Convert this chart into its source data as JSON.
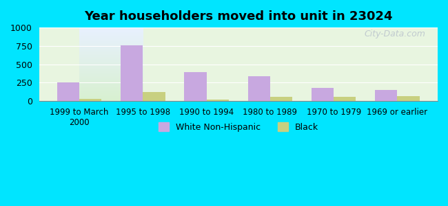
{
  "title": "Year householders moved into unit in 23024",
  "categories": [
    "1999 to March\n2000",
    "1995 to 1998",
    "1990 to 1994",
    "1980 to 1989",
    "1970 to 1979",
    "1969 or earlier"
  ],
  "white_values": [
    255,
    762,
    390,
    337,
    178,
    152
  ],
  "black_values": [
    30,
    120,
    22,
    58,
    55,
    65
  ],
  "white_color": "#c8a8e0",
  "black_color": "#c8d080",
  "ylim": [
    0,
    1000
  ],
  "yticks": [
    0,
    250,
    500,
    750,
    1000
  ],
  "background_outer": "#00e5ff",
  "background_top": "#e8f0ff",
  "background_bottom": "#d8f0d0",
  "watermark": "City-Data.com",
  "legend_white": "White Non-Hispanic",
  "legend_black": "Black",
  "bar_width": 0.35
}
